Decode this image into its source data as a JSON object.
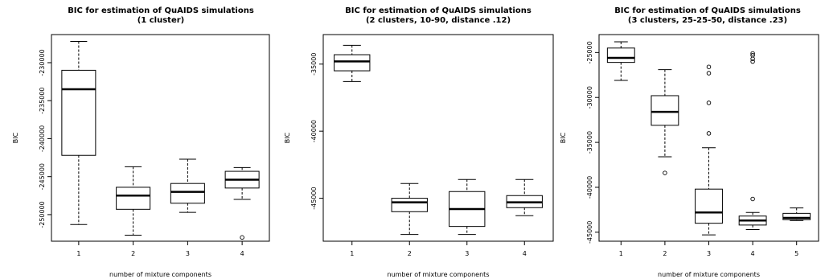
{
  "colors": {
    "stroke": "#000000",
    "background": "#ffffff"
  },
  "chart_data": [
    {
      "type": "boxplot",
      "title": "BIC for estimation of QuAIDS simulations",
      "subtitle": "(1 cluster)",
      "xlabel": "number of mixture components",
      "ylabel": "BIC",
      "categories": [
        "1",
        "2",
        "3",
        "4"
      ],
      "yticks": [
        -230000,
        -235000,
        -240000,
        -245000,
        -250000
      ],
      "ytick_labels": [
        "-230000",
        "-235000",
        "-240000",
        "-245000",
        "-250000"
      ],
      "ylim": [
        -253500,
        -226300
      ],
      "grid": false,
      "boxes": [
        {
          "category": "1",
          "whisker_low": -251300,
          "q1": -242200,
          "median": -233500,
          "q3": -231000,
          "whisker_high": -227200,
          "outliers": []
        },
        {
          "category": "2",
          "whisker_low": -252700,
          "q1": -249300,
          "median": -247500,
          "q3": -246400,
          "whisker_high": -243700,
          "outliers": []
        },
        {
          "category": "3",
          "whisker_low": -249700,
          "q1": -248500,
          "median": -247000,
          "q3": -245900,
          "whisker_high": -242700,
          "outliers": []
        },
        {
          "category": "4",
          "whisker_low": -248000,
          "q1": -246500,
          "median": -245400,
          "q3": -244300,
          "whisker_high": -243800,
          "outliers": [
            -253000
          ]
        }
      ]
    },
    {
      "type": "boxplot",
      "title": "BIC for estimation of QuAIDS simulations",
      "subtitle": "(2 clusters, 10-90, distance .12)",
      "xlabel": "number of mixture components",
      "ylabel": "BIC",
      "categories": [
        "1",
        "2",
        "3",
        "4"
      ],
      "yticks": [
        -35000,
        -40000,
        -45000
      ],
      "ytick_labels": [
        "-35000",
        "-40000",
        "-45000"
      ],
      "ylim": [
        -48200,
        -32800
      ],
      "grid": false,
      "boxes": [
        {
          "category": "1",
          "whisker_low": -36300,
          "q1": -35500,
          "median": -34800,
          "q3": -34300,
          "whisker_high": -33600,
          "outliers": []
        },
        {
          "category": "2",
          "whisker_low": -47700,
          "q1": -46000,
          "median": -45300,
          "q3": -45000,
          "whisker_high": -43900,
          "outliers": []
        },
        {
          "category": "3",
          "whisker_low": -47700,
          "q1": -47100,
          "median": -45800,
          "q3": -44500,
          "whisker_high": -43600,
          "outliers": []
        },
        {
          "category": "4",
          "whisker_low": -46300,
          "q1": -45700,
          "median": -45300,
          "q3": -44800,
          "whisker_high": -43600,
          "outliers": []
        }
      ]
    },
    {
      "type": "boxplot",
      "title": "BIC for estimation of QuAIDS simulations",
      "subtitle": "(3 clusters, 25-25-50, distance .23)",
      "xlabel": "number of mixture components",
      "ylabel": "BIC",
      "categories": [
        "1",
        "2",
        "3",
        "4",
        "5"
      ],
      "yticks": [
        -25000,
        -30000,
        -35000,
        -40000,
        -45000
      ],
      "ytick_labels": [
        "-25000",
        "-30000",
        "-35000",
        "-40000",
        "-45000"
      ],
      "ylim": [
        -46000,
        -23000
      ],
      "grid": false,
      "boxes": [
        {
          "category": "1",
          "whisker_low": -28100,
          "q1": -26100,
          "median": -25600,
          "q3": -24500,
          "whisker_high": -23800,
          "outliers": []
        },
        {
          "category": "2",
          "whisker_low": -36600,
          "q1": -33100,
          "median": -31600,
          "q3": -29800,
          "whisker_high": -26900,
          "outliers": [
            -38400
          ]
        },
        {
          "category": "3",
          "whisker_low": -45300,
          "q1": -44000,
          "median": -42800,
          "q3": -40200,
          "whisker_high": -35600,
          "outliers": [
            -34000,
            -30600,
            -27300,
            -26600
          ]
        },
        {
          "category": "4",
          "whisker_low": -44700,
          "q1": -44200,
          "median": -43700,
          "q3": -43200,
          "whisker_high": -42800,
          "outliers": [
            -41300,
            -26000,
            -25700,
            -25300,
            -25100
          ]
        },
        {
          "category": "5",
          "whisker_low": -43700,
          "q1": -43600,
          "median": -43400,
          "q3": -42900,
          "whisker_high": -42300,
          "outliers": []
        }
      ]
    }
  ]
}
